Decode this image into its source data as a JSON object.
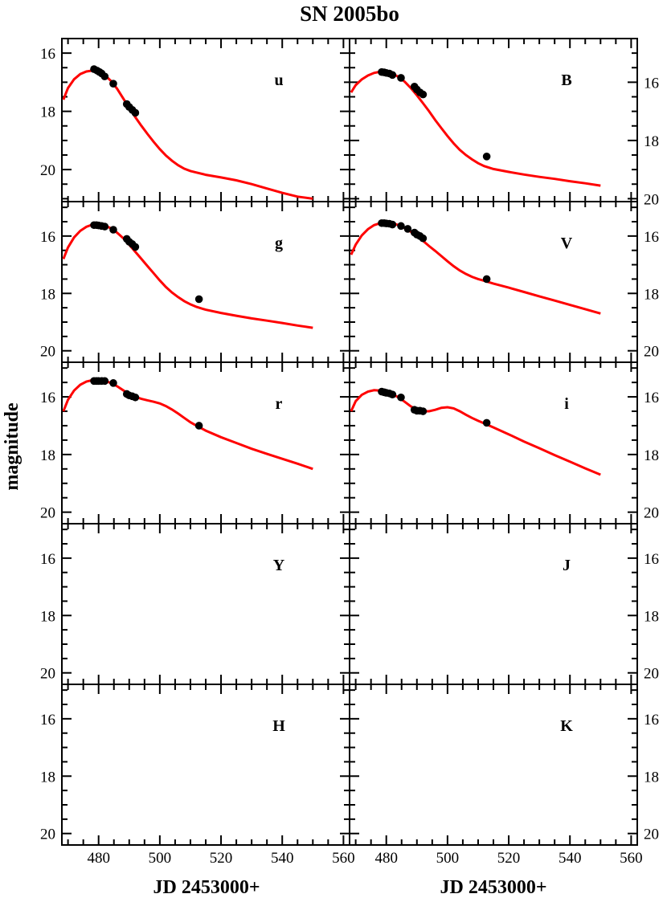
{
  "chart_data": {
    "title": "SN 2005bo",
    "type": "scatter",
    "xlabel": "JD 2453000+",
    "ylabel": "magnitude",
    "xlim": [
      468,
      562
    ],
    "x_ticks": [
      480,
      500,
      520,
      540,
      560
    ],
    "y_ticks": [
      16,
      18,
      20
    ],
    "y_inverted": true,
    "marker_color": "#000000",
    "fit_color": "#ff0000",
    "panels": [
      {
        "band": "u",
        "ylim": [
          21.1,
          15.5
        ],
        "points": [
          [
            478.5,
            16.55
          ],
          [
            479.5,
            16.6
          ],
          [
            480.3,
            16.65
          ],
          [
            481,
            16.7
          ],
          [
            482,
            16.8
          ],
          [
            484.8,
            17.05
          ],
          [
            489.2,
            17.75
          ],
          [
            490,
            17.85
          ],
          [
            491,
            17.95
          ],
          [
            492,
            18.05
          ]
        ],
        "fit": [
          [
            468.5,
            17.6
          ],
          [
            470,
            17.2
          ],
          [
            472,
            16.9
          ],
          [
            474,
            16.72
          ],
          [
            476,
            16.63
          ],
          [
            478,
            16.6
          ],
          [
            480,
            16.64
          ],
          [
            482,
            16.75
          ],
          [
            484,
            16.95
          ],
          [
            486,
            17.22
          ],
          [
            488,
            17.55
          ],
          [
            490,
            17.88
          ],
          [
            492,
            18.2
          ],
          [
            494,
            18.5
          ],
          [
            496,
            18.78
          ],
          [
            498,
            19.05
          ],
          [
            500,
            19.3
          ],
          [
            502,
            19.52
          ],
          [
            504,
            19.7
          ],
          [
            506,
            19.85
          ],
          [
            508,
            19.97
          ],
          [
            510,
            20.05
          ],
          [
            512,
            20.1
          ],
          [
            515,
            20.18
          ],
          [
            520,
            20.27
          ],
          [
            525,
            20.37
          ],
          [
            530,
            20.5
          ],
          [
            535,
            20.65
          ],
          [
            540,
            20.8
          ],
          [
            545,
            20.93
          ],
          [
            550,
            21.0
          ]
        ]
      },
      {
        "band": "B",
        "ylim": [
          20.1,
          14.5
        ],
        "points": [
          [
            478.5,
            15.65
          ],
          [
            479.3,
            15.66
          ],
          [
            480,
            15.68
          ],
          [
            481,
            15.7
          ],
          [
            482,
            15.75
          ],
          [
            484.8,
            15.85
          ],
          [
            489.2,
            16.15
          ],
          [
            490,
            16.25
          ],
          [
            491,
            16.35
          ],
          [
            492,
            16.42
          ],
          [
            512.8,
            18.55
          ]
        ],
        "fit": [
          [
            468.5,
            16.35
          ],
          [
            470,
            16.1
          ],
          [
            472,
            15.9
          ],
          [
            474,
            15.77
          ],
          [
            476,
            15.68
          ],
          [
            478,
            15.64
          ],
          [
            480,
            15.64
          ],
          [
            482,
            15.7
          ],
          [
            484,
            15.82
          ],
          [
            486,
            15.98
          ],
          [
            488,
            16.2
          ],
          [
            490,
            16.45
          ],
          [
            492,
            16.72
          ],
          [
            494,
            17.0
          ],
          [
            496,
            17.3
          ],
          [
            498,
            17.58
          ],
          [
            500,
            17.85
          ],
          [
            502,
            18.1
          ],
          [
            504,
            18.32
          ],
          [
            506,
            18.5
          ],
          [
            508,
            18.65
          ],
          [
            510,
            18.78
          ],
          [
            512,
            18.88
          ],
          [
            515,
            18.98
          ],
          [
            520,
            19.08
          ],
          [
            525,
            19.17
          ],
          [
            530,
            19.25
          ],
          [
            535,
            19.32
          ],
          [
            540,
            19.4
          ],
          [
            545,
            19.47
          ],
          [
            550,
            19.55
          ]
        ]
      },
      {
        "band": "g",
        "ylim": [
          20.4,
          14.8
        ],
        "points": [
          [
            478.5,
            15.62
          ],
          [
            479.3,
            15.62
          ],
          [
            480,
            15.63
          ],
          [
            481,
            15.65
          ],
          [
            482,
            15.67
          ],
          [
            484.8,
            15.78
          ],
          [
            489.2,
            16.1
          ],
          [
            490,
            16.2
          ],
          [
            491,
            16.28
          ],
          [
            492,
            16.38
          ],
          [
            512.8,
            18.2
          ]
        ],
        "fit": [
          [
            468.5,
            16.8
          ],
          [
            470,
            16.4
          ],
          [
            472,
            16.05
          ],
          [
            474,
            15.82
          ],
          [
            476,
            15.68
          ],
          [
            478,
            15.6
          ],
          [
            480,
            15.59
          ],
          [
            482,
            15.63
          ],
          [
            484,
            15.73
          ],
          [
            486,
            15.88
          ],
          [
            488,
            16.07
          ],
          [
            490,
            16.3
          ],
          [
            492,
            16.55
          ],
          [
            494,
            16.8
          ],
          [
            496,
            17.05
          ],
          [
            498,
            17.3
          ],
          [
            500,
            17.55
          ],
          [
            502,
            17.78
          ],
          [
            504,
            17.97
          ],
          [
            506,
            18.13
          ],
          [
            508,
            18.27
          ],
          [
            510,
            18.38
          ],
          [
            512,
            18.47
          ],
          [
            515,
            18.57
          ],
          [
            520,
            18.68
          ],
          [
            525,
            18.78
          ],
          [
            530,
            18.87
          ],
          [
            535,
            18.95
          ],
          [
            540,
            19.03
          ],
          [
            545,
            19.12
          ],
          [
            550,
            19.2
          ]
        ]
      },
      {
        "band": "V",
        "ylim": [
          20.4,
          14.8
        ],
        "points": [
          [
            478.5,
            15.55
          ],
          [
            479.3,
            15.55
          ],
          [
            480,
            15.56
          ],
          [
            481,
            15.57
          ],
          [
            482,
            15.6
          ],
          [
            484.8,
            15.65
          ],
          [
            487,
            15.75
          ],
          [
            489.2,
            15.88
          ],
          [
            490,
            15.95
          ],
          [
            491,
            16.0
          ],
          [
            492,
            16.08
          ],
          [
            512.8,
            17.5
          ]
        ],
        "fit": [
          [
            468.5,
            16.65
          ],
          [
            470,
            16.3
          ],
          [
            472,
            15.98
          ],
          [
            474,
            15.76
          ],
          [
            476,
            15.62
          ],
          [
            478,
            15.55
          ],
          [
            480,
            15.53
          ],
          [
            482,
            15.55
          ],
          [
            484,
            15.62
          ],
          [
            486,
            15.72
          ],
          [
            488,
            15.85
          ],
          [
            490,
            16.0
          ],
          [
            492,
            16.17
          ],
          [
            494,
            16.35
          ],
          [
            496,
            16.52
          ],
          [
            498,
            16.7
          ],
          [
            500,
            16.88
          ],
          [
            502,
            17.05
          ],
          [
            504,
            17.2
          ],
          [
            506,
            17.32
          ],
          [
            508,
            17.42
          ],
          [
            510,
            17.5
          ],
          [
            512,
            17.56
          ],
          [
            515,
            17.66
          ],
          [
            520,
            17.8
          ],
          [
            525,
            17.95
          ],
          [
            530,
            18.1
          ],
          [
            535,
            18.25
          ],
          [
            540,
            18.4
          ],
          [
            545,
            18.55
          ],
          [
            550,
            18.7
          ]
        ]
      },
      {
        "band": "r",
        "ylim": [
          20.4,
          14.8
        ],
        "points": [
          [
            478.5,
            15.45
          ],
          [
            479.3,
            15.45
          ],
          [
            480,
            15.45
          ],
          [
            481,
            15.45
          ],
          [
            482,
            15.45
          ],
          [
            484.8,
            15.52
          ],
          [
            489.2,
            15.9
          ],
          [
            490,
            15.95
          ],
          [
            491,
            15.98
          ],
          [
            492,
            16.02
          ],
          [
            512.8,
            17.0
          ]
        ],
        "fit": [
          [
            468.5,
            16.5
          ],
          [
            470,
            16.1
          ],
          [
            472,
            15.78
          ],
          [
            474,
            15.58
          ],
          [
            476,
            15.47
          ],
          [
            478,
            15.42
          ],
          [
            480,
            15.41
          ],
          [
            482,
            15.44
          ],
          [
            484,
            15.52
          ],
          [
            486,
            15.63
          ],
          [
            488,
            15.77
          ],
          [
            490,
            15.9
          ],
          [
            492,
            16.0
          ],
          [
            494,
            16.07
          ],
          [
            496,
            16.12
          ],
          [
            498,
            16.17
          ],
          [
            500,
            16.23
          ],
          [
            502,
            16.32
          ],
          [
            504,
            16.44
          ],
          [
            506,
            16.58
          ],
          [
            508,
            16.73
          ],
          [
            510,
            16.88
          ],
          [
            512,
            17.0
          ],
          [
            515,
            17.17
          ],
          [
            520,
            17.4
          ],
          [
            525,
            17.6
          ],
          [
            530,
            17.8
          ],
          [
            535,
            17.98
          ],
          [
            540,
            18.15
          ],
          [
            545,
            18.32
          ],
          [
            550,
            18.5
          ]
        ]
      },
      {
        "band": "i",
        "ylim": [
          20.4,
          14.8
        ],
        "points": [
          [
            478.5,
            15.82
          ],
          [
            479.3,
            15.84
          ],
          [
            480,
            15.86
          ],
          [
            481,
            15.88
          ],
          [
            482,
            15.92
          ],
          [
            484.8,
            16.02
          ],
          [
            489.2,
            16.45
          ],
          [
            490,
            16.48
          ],
          [
            491,
            16.48
          ],
          [
            492,
            16.5
          ],
          [
            512.8,
            16.9
          ]
        ],
        "fit": [
          [
            468.5,
            16.5
          ],
          [
            470,
            16.15
          ],
          [
            472,
            15.93
          ],
          [
            474,
            15.82
          ],
          [
            476,
            15.77
          ],
          [
            478,
            15.78
          ],
          [
            480,
            15.82
          ],
          [
            482,
            15.9
          ],
          [
            484,
            16.02
          ],
          [
            486,
            16.17
          ],
          [
            488,
            16.33
          ],
          [
            490,
            16.45
          ],
          [
            492,
            16.5
          ],
          [
            494,
            16.5
          ],
          [
            496,
            16.45
          ],
          [
            498,
            16.38
          ],
          [
            500,
            16.36
          ],
          [
            502,
            16.4
          ],
          [
            504,
            16.5
          ],
          [
            506,
            16.62
          ],
          [
            508,
            16.73
          ],
          [
            510,
            16.83
          ],
          [
            512,
            16.92
          ],
          [
            515,
            17.06
          ],
          [
            520,
            17.3
          ],
          [
            525,
            17.55
          ],
          [
            530,
            17.78
          ],
          [
            535,
            18.02
          ],
          [
            540,
            18.25
          ],
          [
            545,
            18.48
          ],
          [
            550,
            18.7
          ]
        ]
      },
      {
        "band": "Y",
        "ylim": [
          20.4,
          14.8
        ],
        "points": [],
        "fit": []
      },
      {
        "band": "J",
        "ylim": [
          20.4,
          14.8
        ],
        "points": [],
        "fit": []
      },
      {
        "band": "H",
        "ylim": [
          20.4,
          14.8
        ],
        "points": [],
        "fit": []
      },
      {
        "band": "K",
        "ylim": [
          20.4,
          14.8
        ],
        "points": [],
        "fit": []
      }
    ]
  }
}
